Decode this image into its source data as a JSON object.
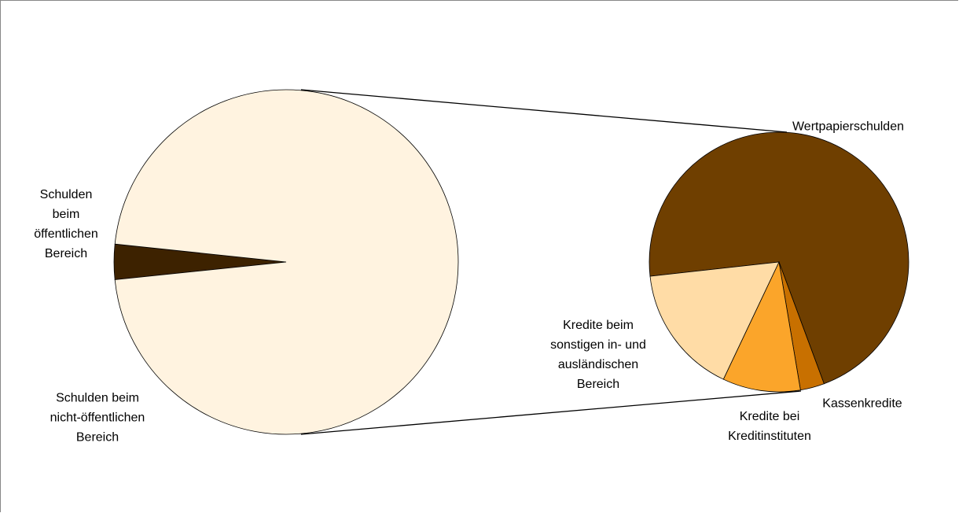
{
  "chart_data": [
    {
      "type": "pie",
      "categories": [
        "Schulden beim öffentlichen Bereich",
        "Schulden beim nicht-öffentlichen Bereich"
      ],
      "values": [
        3.3,
        96.7
      ],
      "colors": [
        "#3d2200",
        "#fff3e0"
      ]
    },
    {
      "type": "pie",
      "categories": [
        "Wertpapierschulden",
        "Kassenkredite",
        "Kredite bei Kreditinstituten",
        "Kredite beim sonstigen in- und ausländischen Bereich"
      ],
      "values": [
        71.1,
        3.0,
        9.7,
        16.2
      ],
      "colors": [
        "#6f3f00",
        "#c87000",
        "#fba52a",
        "#ffdca6"
      ]
    }
  ]
}
